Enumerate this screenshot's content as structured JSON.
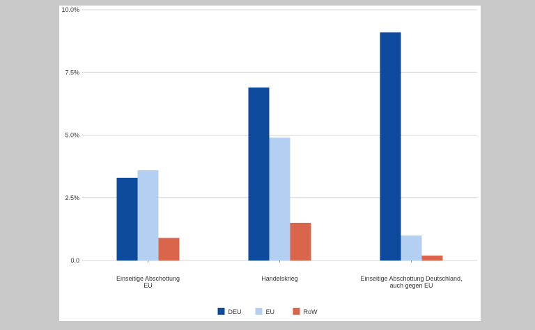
{
  "chart_data": {
    "type": "bar",
    "categories": [
      [
        "Einseitige Abschottung",
        "EU"
      ],
      [
        "Handelskrieg"
      ],
      [
        "Einseitige Abschottung Deutschland,",
        "auch gegen EU"
      ]
    ],
    "series": [
      {
        "name": "DEU",
        "color": "#0d4a9b",
        "values": [
          3.3,
          6.9,
          9.1
        ]
      },
      {
        "name": "EU",
        "color": "#b3cff2",
        "values": [
          3.6,
          4.9,
          1.0
        ]
      },
      {
        "name": "RoW",
        "color": "#d9664a",
        "values": [
          0.9,
          1.5,
          0.2
        ]
      }
    ],
    "yticks": [
      "0.0",
      "2.5%",
      "5.0%",
      "7.5%",
      "10.0%"
    ],
    "ytick_values": [
      0,
      2.5,
      5.0,
      7.5,
      10.0
    ],
    "ylim": [
      0,
      10
    ],
    "grid": true,
    "legend_position": "bottom"
  }
}
